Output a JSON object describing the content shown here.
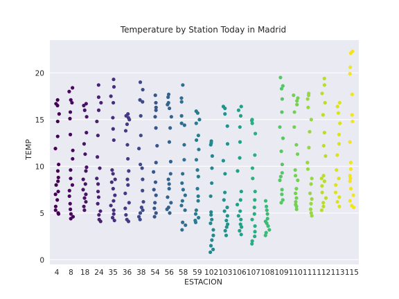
{
  "chart_data": {
    "type": "scatter",
    "subtype": "strip",
    "title": "Temperature by Station Today in Madrid",
    "xlabel": "ESTACION",
    "ylabel": "TEMP",
    "ylim": [
      -0.5,
      23.5
    ],
    "yticks": [
      "0",
      "5",
      "10",
      "15",
      "20"
    ],
    "grid": true,
    "legend": "none",
    "palette": "viridis",
    "background": "#eaeaf2",
    "categories": [
      "4",
      "8",
      "18",
      "24",
      "35",
      "36",
      "38",
      "54",
      "56",
      "58",
      "59",
      "102",
      "103",
      "106",
      "107",
      "108",
      "109",
      "110",
      "111",
      "112",
      "113",
      "115"
    ],
    "colors": [
      "#440154",
      "#46085c",
      "#471365",
      "#482173",
      "#472e7c",
      "#443b84",
      "#3e4989",
      "#38558c",
      "#33638d",
      "#2d6f8e",
      "#287c8e",
      "#24878e",
      "#20938c",
      "#1fa188",
      "#28ae80",
      "#3bbb75",
      "#56c667",
      "#74d055",
      "#95d840",
      "#b8de29",
      "#dce319",
      "#f1e51d"
    ],
    "values": [
      [
        17.1,
        16.7,
        16.5,
        15.6,
        14.8,
        13.2,
        11.9,
        10.2,
        9.5,
        8.8,
        8.4,
        8.0,
        7.3,
        7.0,
        6.4,
        5.7,
        5.3,
        5.0,
        4.9
      ],
      [
        18.4,
        18.0,
        17.1,
        16.8,
        15.8,
        15.1,
        13.4,
        11.7,
        10.8,
        9.6,
        8.7,
        8.0,
        7.4,
        6.8,
        6.0,
        5.4,
        4.9,
        4.6,
        4.4
      ],
      [
        16.7,
        16.5,
        16.0,
        15.3,
        13.6,
        12.4,
        11.3,
        9.9,
        9.5,
        8.6,
        8.1,
        7.5,
        7.0,
        6.6,
        6.2,
        5.7,
        5.3
      ],
      [
        18.7,
        17.4,
        16.8,
        16.0,
        14.8,
        13.3,
        11.0,
        9.8,
        8.7,
        8.1,
        7.3,
        6.7,
        6.0,
        5.2,
        4.8,
        4.3,
        4.1
      ],
      [
        19.3,
        18.5,
        17.5,
        16.8,
        15.2,
        14.0,
        12.8,
        9.6,
        9.2,
        8.6,
        8.3,
        7.6,
        6.9,
        6.3,
        5.8,
        5.3,
        4.9,
        4.5,
        4.2
      ],
      [
        15.6,
        15.4,
        15.2,
        15.0,
        14.5,
        13.8,
        12.3,
        10.8,
        9.5,
        8.6,
        8.0,
        7.1,
        6.1,
        5.5,
        4.8,
        4.3,
        4.1
      ],
      [
        19.0,
        18.2,
        17.1,
        16.9,
        15.4,
        13.3,
        11.9,
        10.2,
        9.8,
        8.6,
        7.4,
        6.2,
        5.6,
        5.3,
        5.0,
        4.6,
        4.3
      ],
      [
        17.6,
        16.8,
        16.3,
        16.0,
        15.3,
        14.1,
        12.2,
        10.4,
        9.4,
        8.3,
        7.5,
        6.9,
        6.1,
        5.5,
        5.0,
        4.6
      ],
      [
        17.7,
        17.4,
        16.8,
        16.6,
        16.2,
        15.3,
        14.1,
        12.6,
        10.5,
        9.2,
        8.6,
        8.1,
        7.6,
        6.7,
        6.1,
        5.6,
        5.4,
        5.0
      ],
      [
        18.7,
        17.3,
        16.9,
        15.4,
        14.6,
        14.4,
        12.3,
        10.7,
        9.2,
        8.2,
        7.5,
        6.9,
        6.3,
        5.8,
        5.3,
        4.0,
        3.7,
        3.2
      ],
      [
        15.9,
        15.7,
        15.0,
        14.6,
        13.3,
        12.8,
        11.8,
        10.7,
        9.6,
        8.9,
        7.6,
        6.8,
        6.3,
        5.3,
        4.9,
        4.5,
        4.2,
        4.0
      ],
      [
        12.7,
        12.5,
        12.3,
        11.1,
        9.8,
        8.2,
        6.8,
        5.1,
        4.8,
        4.3,
        3.9,
        3.2,
        2.6,
        2.1,
        1.5,
        1.1,
        0.8
      ],
      [
        16.4,
        16.2,
        15.6,
        14.3,
        12.4,
        10.6,
        9.2,
        7.2,
        6.4,
        5.6,
        5.2,
        4.7,
        4.2,
        3.8,
        3.5,
        3.1,
        2.6
      ],
      [
        16.4,
        16.0,
        15.4,
        14.2,
        12.6,
        10.9,
        9.5,
        7.3,
        6.4,
        5.9,
        5.2,
        4.7,
        4.3,
        3.8,
        3.5,
        3.1,
        2.7
      ],
      [
        15.0,
        14.9,
        14.6,
        13.5,
        11.2,
        9.8,
        8.7,
        7.3,
        6.4,
        5.6,
        4.9,
        4.3,
        3.6,
        3.0,
        2.5,
        2.0,
        1.7
      ],
      [
        6.3,
        5.7,
        5.3,
        4.9,
        4.4,
        4.1,
        3.9,
        3.6,
        3.2,
        2.9,
        2.6
      ],
      [
        19.5,
        18.6,
        18.3,
        17.2,
        15.8,
        14.2,
        13.0,
        11.6,
        10.2,
        9.3,
        8.9,
        8.5,
        7.5,
        7.0,
        6.4,
        6.1
      ],
      [
        17.6,
        17.3,
        17.0,
        16.6,
        15.8,
        14.2,
        12.3,
        11.3,
        9.6,
        9.0,
        8.5,
        7.6,
        7.1,
        6.6,
        6.2,
        5.9,
        5.7,
        5.4
      ],
      [
        17.8,
        17.6,
        17.2,
        16.3,
        15.0,
        13.7,
        12.0,
        10.4,
        9.7,
        8.7,
        8.1,
        7.1,
        6.5,
        6.0,
        5.4,
        5.0,
        4.7
      ],
      [
        19.4,
        18.7,
        17.8,
        16.8,
        15.5,
        13.6,
        12.2,
        11.1,
        9.0,
        8.7,
        8.4,
        7.9,
        7.2,
        6.6,
        6.1,
        5.7,
        5.3
      ],
      [
        16.8,
        16.4,
        15.7,
        14.6,
        13.4,
        12.4,
        11.2,
        9.6,
        8.7,
        8.0,
        7.2,
        6.7,
        6.2,
        5.7
      ],
      [
        22.3,
        22.1,
        20.6,
        19.9,
        17.7,
        15.5,
        14.8,
        12.6,
        10.4,
        9.7,
        9.0,
        8.7,
        8.4,
        7.6,
        6.9,
        6.3,
        5.8,
        5.6
      ]
    ]
  }
}
